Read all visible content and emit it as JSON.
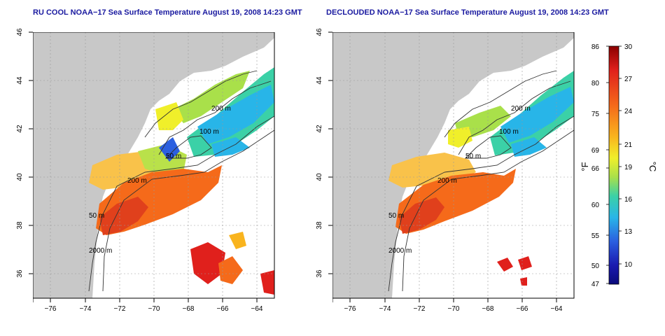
{
  "panels": [
    {
      "id": "left",
      "title": "RU COOL NOAA−17 Sea Surface Temperature August 19, 2008 14:23 GMT"
    },
    {
      "id": "right",
      "title": "DECLOUDED NOAA−17 Sea Surface Temperature August 19, 2008 14:23 GMT"
    }
  ],
  "axes": {
    "x_ticks": [
      "−76",
      "−74",
      "−72",
      "−70",
      "−68",
      "−66",
      "−64"
    ],
    "y_ticks": [
      "46",
      "44",
      "42",
      "40",
      "38",
      "36"
    ],
    "lon_range": [
      -77,
      -63
    ],
    "lat_range": [
      35,
      46
    ]
  },
  "contour_labels": [
    "200 m",
    "100 m",
    "50 m",
    "200 m",
    "50 m",
    "2000 m"
  ],
  "colorbar": {
    "fahrenheit_ticks": [
      "86",
      "80",
      "75",
      "69",
      "66",
      "60",
      "55",
      "50",
      "47"
    ],
    "celsius_ticks": [
      "30",
      "27",
      "24",
      "21",
      "19",
      "16",
      "13",
      "10"
    ],
    "fahrenheit_unit": "°F",
    "celsius_unit": "°C",
    "range_c": [
      8,
      30
    ],
    "colors": [
      "#8b0000",
      "#e0201c",
      "#f56a1a",
      "#f9b41e",
      "#f0ef2a",
      "#a9e04a",
      "#3bd1a7",
      "#28b5e8",
      "#2b5fe0",
      "#1a1ab0",
      "#0a0a7a"
    ]
  },
  "colors": {
    "land": "#c8c8c8",
    "title": "#1a1aa0"
  }
}
